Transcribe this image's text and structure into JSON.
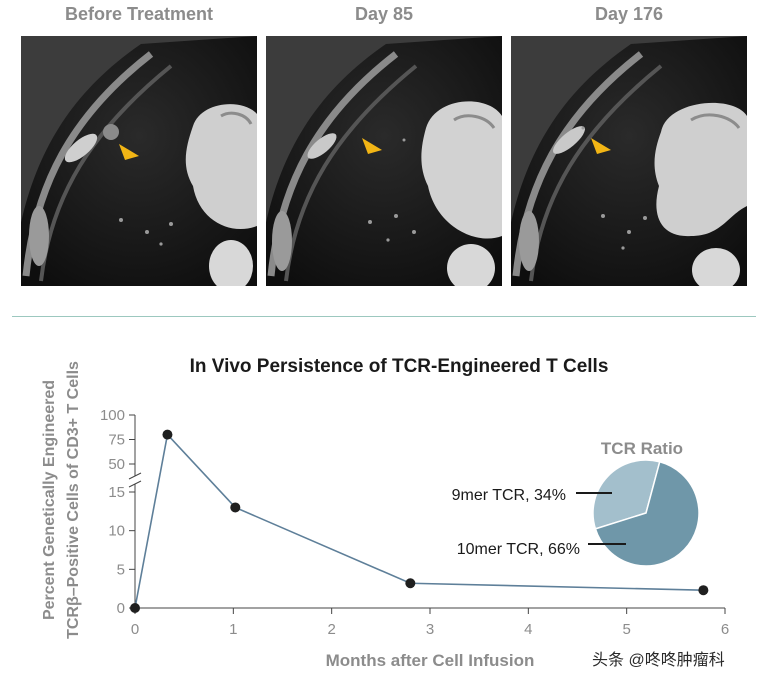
{
  "panels": [
    {
      "title": "Before Treatment"
    },
    {
      "title": "Day 85"
    },
    {
      "title": "Day 176"
    }
  ],
  "watermark": "头条 @咚咚肿瘤科",
  "colors": {
    "line": "#5e7f99",
    "arrow": "#f2b515",
    "axis_text": "#8c8c8c",
    "divider": "#9cc8bf",
    "pie_9mer": "#a3bfcc",
    "pie_10mer": "#6f97a9"
  },
  "chart_data": {
    "type": "line",
    "title": "In Vivo Persistence of TCR-Engineered T Cells",
    "xlabel": "Months after Cell Infusion",
    "ylabel_lines": [
      "Percent Genetically Engineered",
      "TCRβ–Positive Cells of CD3+ T Cells"
    ],
    "xlim": [
      0,
      6
    ],
    "x_ticks": [
      "0",
      "1",
      "2",
      "3",
      "4",
      "5",
      "6"
    ],
    "y_ticks_lower": [
      "0",
      "5",
      "10",
      "15"
    ],
    "y_ticks_upper": [
      "50",
      "75",
      "100"
    ],
    "y_axis_break": [
      15,
      50
    ],
    "series": [
      {
        "name": "TCR-engineered T cells",
        "x": [
          0,
          0.33,
          1.02,
          2.8,
          5.78
        ],
        "y": [
          0,
          80,
          13,
          3.2,
          2.3
        ]
      }
    ],
    "inset_pie": {
      "title": "TCR Ratio",
      "slices": [
        {
          "label": "9mer TCR, 34%",
          "value": 34
        },
        {
          "label": "10mer TCR, 66%",
          "value": 66
        }
      ]
    }
  }
}
